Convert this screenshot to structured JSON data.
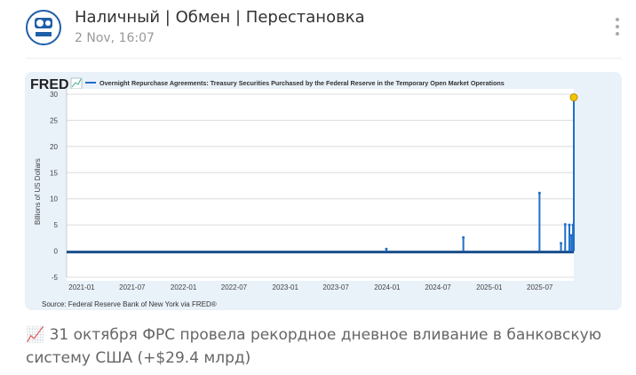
{
  "post": {
    "channel_title": "Наличный | Обмен | Перестановка",
    "timestamp": "2 Nov, 16:07",
    "avatar_icon": "channel-logo-icon",
    "menu_icon": "more-vertical-icon",
    "caption_icon": "chart-increasing-emoji",
    "caption": "31 октября ФРС провела рекордное дневное вливание в банковскую систему США (+$29.4 млрд)"
  },
  "chart_data": {
    "type": "line",
    "brand": "FRED",
    "title": "Overnight Repurchase Agreements: Treasury Securities Purchased by the Federal Reserve in the Temporary Open Market Operations",
    "ylabel": "Billions of US Dollars",
    "source": "Source: Federal Reserve Bank of New York via FRED®",
    "series_color": "#1f6fc9",
    "highlight_color": "#f2c500",
    "ylim": [
      -5,
      30
    ],
    "xlim": [
      "2020-11-08",
      "2025-10-31"
    ],
    "yticks": [
      30,
      25,
      20,
      15,
      10,
      5,
      0,
      -5
    ],
    "xticks": [
      "2021-01",
      "2021-07",
      "2022-01",
      "2022-07",
      "2023-01",
      "2023-07",
      "2024-01",
      "2024-07",
      "2025-01",
      "2025-07"
    ],
    "grid": true,
    "points": [
      {
        "x": "2023-12-29",
        "y": 0.4
      },
      {
        "x": "2024-09-30",
        "y": 2.6
      },
      {
        "x": "2025-06-30",
        "y": 11.1
      },
      {
        "x": "2025-09-15",
        "y": 1.5
      },
      {
        "x": "2025-09-30",
        "y": 5.1
      },
      {
        "x": "2025-10-15",
        "y": 5.0
      },
      {
        "x": "2025-10-22",
        "y": 3.0
      },
      {
        "x": "2025-10-28",
        "y": 5.0
      },
      {
        "x": "2025-10-31",
        "y": 29.4
      }
    ]
  }
}
